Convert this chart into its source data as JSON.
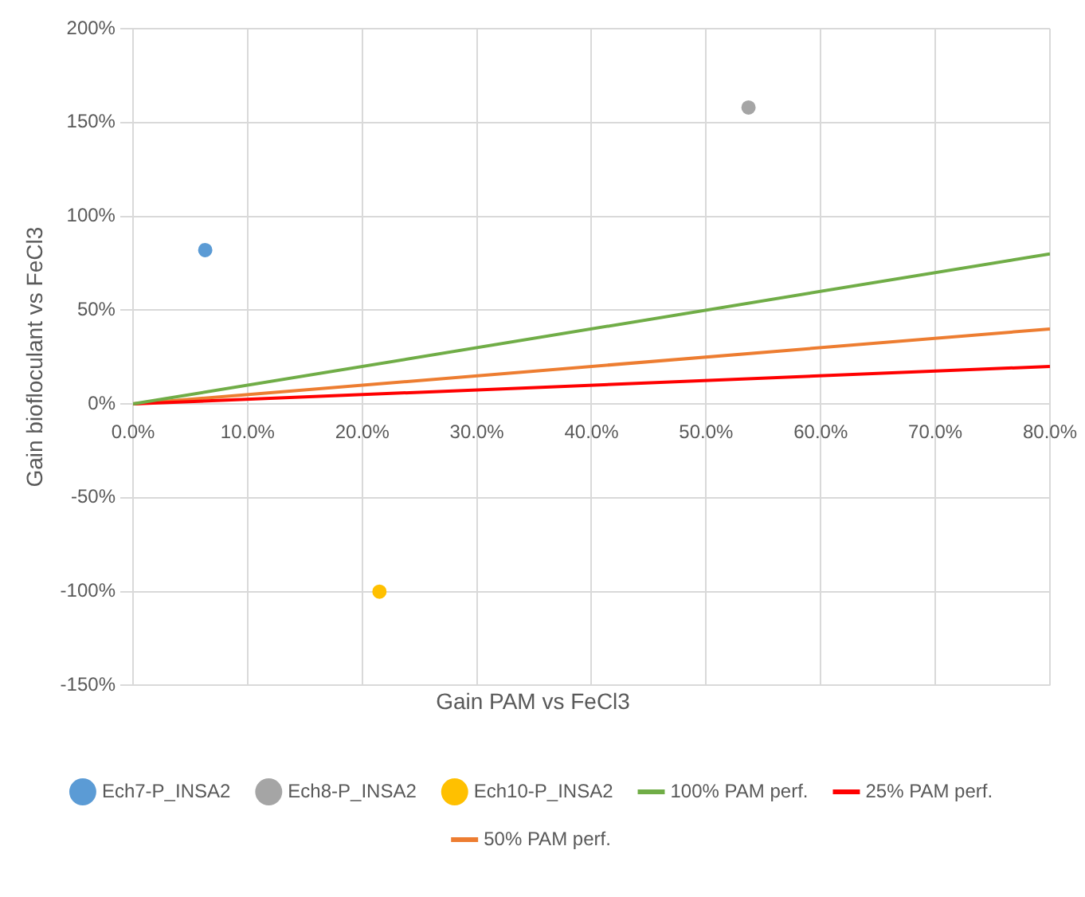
{
  "chart_data": {
    "type": "scatter",
    "xlabel": "Gain PAM vs FeCl3",
    "ylabel": "Gain biofloculant vs FeCl3",
    "xlim": [
      0,
      80
    ],
    "ylim": [
      -150,
      200
    ],
    "xticks": [
      {
        "value": 0,
        "label": "0.0%"
      },
      {
        "value": 10,
        "label": "10.0%"
      },
      {
        "value": 20,
        "label": "20.0%"
      },
      {
        "value": 30,
        "label": "30.0%"
      },
      {
        "value": 40,
        "label": "40.0%"
      },
      {
        "value": 50,
        "label": "50.0%"
      },
      {
        "value": 60,
        "label": "60.0%"
      },
      {
        "value": 70,
        "label": "70.0%"
      },
      {
        "value": 80,
        "label": "80.0%"
      }
    ],
    "yticks": [
      {
        "value": -150,
        "label": "-150%"
      },
      {
        "value": -100,
        "label": "-100%"
      },
      {
        "value": -50,
        "label": "-50%"
      },
      {
        "value": 0,
        "label": "0%"
      },
      {
        "value": 50,
        "label": "50%"
      },
      {
        "value": 100,
        "label": "100%"
      },
      {
        "value": 150,
        "label": "150%"
      },
      {
        "value": 200,
        "label": "200%"
      }
    ],
    "grid": true,
    "legend": "bottom",
    "marker": "circle",
    "series": [
      {
        "name": "Ech7-P_INSA2",
        "color": "#5b9bd5",
        "x": [
          6.3
        ],
        "values": [
          82
        ]
      },
      {
        "name": "Ech8-P_INSA2",
        "color": "#a5a5a5",
        "x": [
          53.7
        ],
        "values": [
          158
        ]
      },
      {
        "name": "Ech10-P_INSA2",
        "color": "#ffc000",
        "x": [
          21.5
        ],
        "values": [
          -100
        ]
      },
      {
        "name": "100% PAM perf.",
        "type": "line",
        "marker": "none",
        "color": "#70ad47",
        "x": [
          0,
          80
        ],
        "values": [
          0,
          80
        ]
      },
      {
        "name": "25% PAM perf.",
        "type": "line",
        "marker": "none",
        "color": "#ff0000",
        "x": [
          0,
          80
        ],
        "values": [
          0,
          20
        ]
      },
      {
        "name": "50% PAM perf.",
        "type": "line",
        "marker": "none",
        "color": "#ed7d31",
        "x": [
          0,
          80
        ],
        "values": [
          0,
          40
        ]
      }
    ]
  }
}
